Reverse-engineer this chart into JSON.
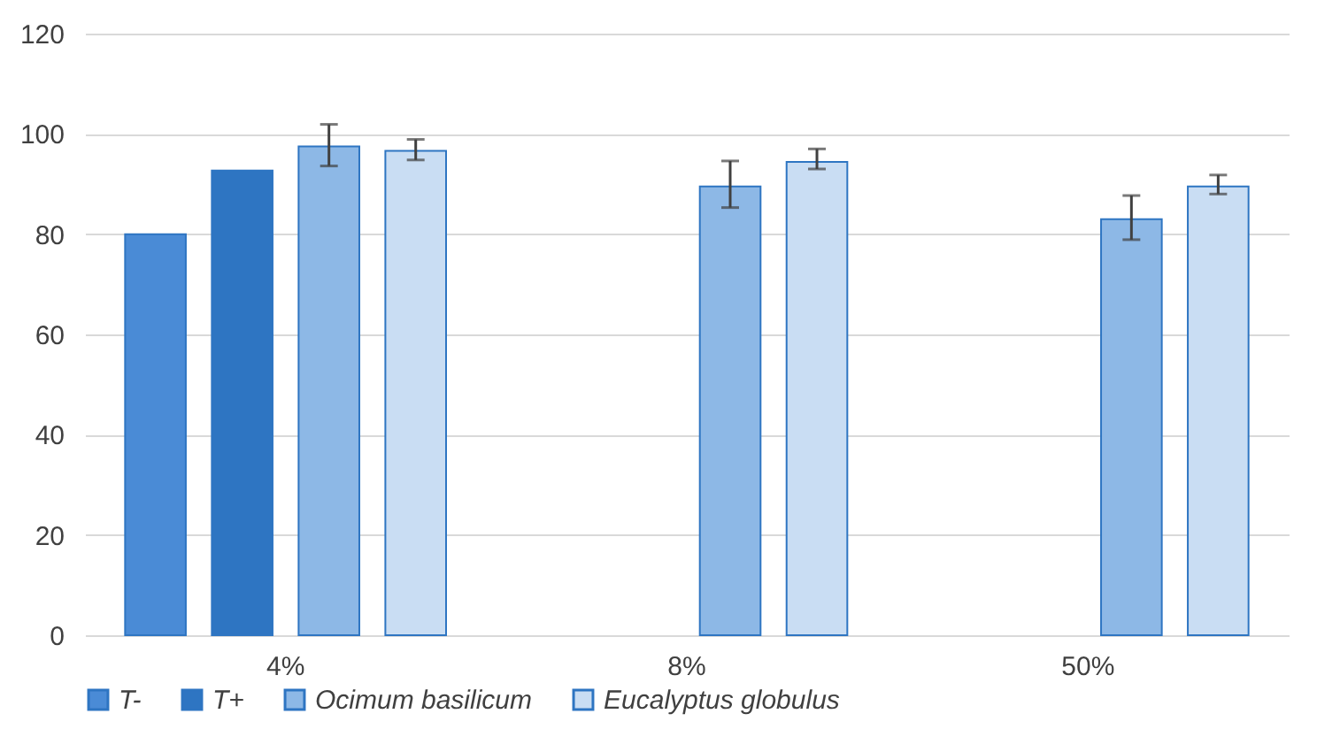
{
  "chart_data": {
    "type": "bar",
    "categories": [
      "4%",
      "8%",
      "50%"
    ],
    "series": [
      {
        "name": "T-",
        "color": "#4a8bd6",
        "values": [
          80,
          null,
          null
        ]
      },
      {
        "name": "T+",
        "color": "#2e75c2",
        "values": [
          92.7,
          null,
          null
        ]
      },
      {
        "name": "Ocimum basilicum",
        "color": "#8db8e6",
        "values": [
          97.5,
          89.5,
          83
        ],
        "errors": [
          [
            93.6,
            101.9
          ],
          [
            85.3,
            94.6
          ],
          [
            78.9,
            87.7
          ]
        ]
      },
      {
        "name": "Eucalyptus globulus",
        "color": "#c9ddf3",
        "values": [
          96.6,
          94.4,
          89.5
        ],
        "errors": [
          [
            94.8,
            98.9
          ],
          [
            93,
            97
          ],
          [
            88,
            91.8
          ]
        ]
      }
    ],
    "ylim": [
      0,
      120
    ],
    "yticks": [
      0,
      20,
      40,
      60,
      80,
      100,
      120
    ],
    "grid": "y",
    "legend": "bottom"
  }
}
